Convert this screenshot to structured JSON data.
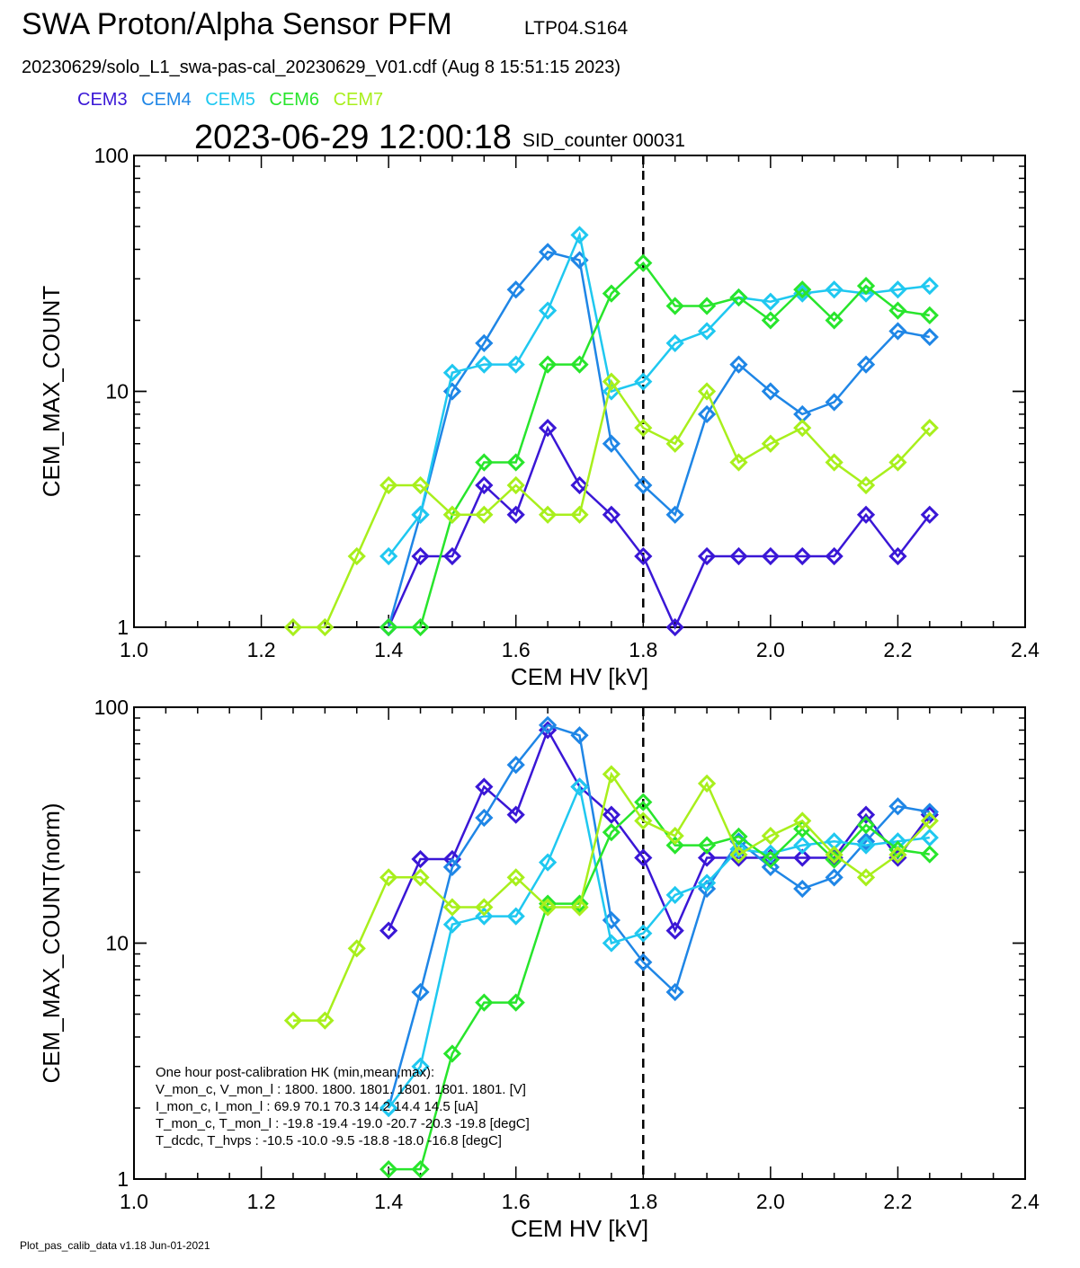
{
  "header": {
    "title": "SWA Proton/Alpha Sensor PFM",
    "subtitle": "LTP04.S164",
    "filename": "20230629/solo_L1_swa-pas-cal_20230629_V01.cdf  (Aug  8 15:51:15 2023)",
    "timestamp": "2023-06-29 12:00:18",
    "sid": "SID_counter 00031"
  },
  "legend": [
    {
      "name": "CEM3",
      "color": "#3a17d6"
    },
    {
      "name": "CEM4",
      "color": "#1f86e6"
    },
    {
      "name": "CEM5",
      "color": "#1fc8f0"
    },
    {
      "name": "CEM6",
      "color": "#28e52c"
    },
    {
      "name": "CEM7",
      "color": "#a8ef1c"
    }
  ],
  "footer": "Plot_pas_calib_data v1.18 Jun-01-2021",
  "hk_text": [
    "One hour post-calibration HK (min,mean,max):",
    "V_mon_c, V_mon_l :   1800.  1800.  1801.      1801.  1801.  1801.  [V]",
    "I_mon_c, I_mon_l :     69.9   70.1   70.3        14.2   14.4   14.5  [uA]",
    "T_mon_c, T_mon_l :   -19.8  -19.4  -19.0       -20.7  -20.3  -19.8  [degC]",
    "T_dcdc,    T_hvps :     -10.5  -10.0   -9.5       -18.8  -18.0  -16.8  [degC]"
  ],
  "chart_data": [
    {
      "type": "line",
      "xlabel": "CEM HV [kV]",
      "ylabel": "CEM_MAX_COUNT",
      "xlim": [
        1.0,
        2.4
      ],
      "ylim": [
        1,
        100
      ],
      "yscale": "log",
      "x_ticks": [
        "1.0",
        "1.2",
        "1.4",
        "1.6",
        "1.8",
        "2.0",
        "2.2",
        "2.4"
      ],
      "y_ticks": [
        "1",
        "10",
        "100"
      ],
      "vline_x": 1.8,
      "series": [
        {
          "name": "CEM3",
          "color": "#3a17d6",
          "points": [
            [
              1.4,
              1
            ],
            [
              1.45,
              2
            ],
            [
              1.5,
              2
            ],
            [
              1.55,
              4
            ],
            [
              1.6,
              3
            ],
            [
              1.65,
              7
            ],
            [
              1.7,
              4
            ],
            [
              1.75,
              3
            ],
            [
              1.8,
              2
            ],
            [
              1.85,
              1
            ],
            [
              1.9,
              2
            ],
            [
              1.95,
              2
            ],
            [
              2.0,
              2
            ],
            [
              2.05,
              2
            ],
            [
              2.1,
              2
            ],
            [
              2.15,
              3
            ],
            [
              2.2,
              2
            ],
            [
              2.25,
              3
            ]
          ]
        },
        {
          "name": "CEM4",
          "color": "#1f86e6",
          "points": [
            [
              1.4,
              1
            ],
            [
              1.45,
              3
            ],
            [
              1.5,
              10
            ],
            [
              1.55,
              16
            ],
            [
              1.6,
              27
            ],
            [
              1.65,
              39
            ],
            [
              1.7,
              36
            ],
            [
              1.75,
              6
            ],
            [
              1.8,
              4
            ],
            [
              1.85,
              3
            ],
            [
              1.9,
              8
            ],
            [
              1.95,
              13
            ],
            [
              2.0,
              10
            ],
            [
              2.05,
              8
            ],
            [
              2.1,
              9
            ],
            [
              2.15,
              13
            ],
            [
              2.2,
              18
            ],
            [
              2.25,
              17
            ]
          ]
        },
        {
          "name": "CEM5",
          "color": "#1fc8f0",
          "points": [
            [
              1.4,
              2
            ],
            [
              1.45,
              3
            ],
            [
              1.5,
              12
            ],
            [
              1.55,
              13
            ],
            [
              1.6,
              13
            ],
            [
              1.65,
              22
            ],
            [
              1.7,
              46
            ],
            [
              1.75,
              10
            ],
            [
              1.8,
              11
            ],
            [
              1.85,
              16
            ],
            [
              1.9,
              18
            ],
            [
              1.95,
              25
            ],
            [
              2.0,
              24
            ],
            [
              2.05,
              26
            ],
            [
              2.1,
              27
            ],
            [
              2.15,
              26
            ],
            [
              2.2,
              27
            ],
            [
              2.25,
              28
            ]
          ]
        },
        {
          "name": "CEM6",
          "color": "#28e52c",
          "points": [
            [
              1.4,
              1
            ],
            [
              1.45,
              1
            ],
            [
              1.5,
              3
            ],
            [
              1.55,
              5
            ],
            [
              1.6,
              5
            ],
            [
              1.65,
              13
            ],
            [
              1.7,
              13
            ],
            [
              1.75,
              26
            ],
            [
              1.8,
              35
            ],
            [
              1.85,
              23
            ],
            [
              1.9,
              23
            ],
            [
              1.95,
              25
            ],
            [
              2.0,
              20
            ],
            [
              2.05,
              27
            ],
            [
              2.1,
              20
            ],
            [
              2.15,
              28
            ],
            [
              2.2,
              22
            ],
            [
              2.25,
              21
            ]
          ]
        },
        {
          "name": "CEM7",
          "color": "#a8ef1c",
          "points": [
            [
              1.25,
              1
            ],
            [
              1.3,
              1
            ],
            [
              1.35,
              2
            ],
            [
              1.4,
              4
            ],
            [
              1.45,
              4
            ],
            [
              1.5,
              3
            ],
            [
              1.55,
              3
            ],
            [
              1.6,
              4
            ],
            [
              1.65,
              3
            ],
            [
              1.7,
              3
            ],
            [
              1.75,
              11
            ],
            [
              1.8,
              7
            ],
            [
              1.85,
              6
            ],
            [
              1.9,
              10
            ],
            [
              1.95,
              5
            ],
            [
              2.0,
              6
            ],
            [
              2.05,
              7
            ],
            [
              2.1,
              5
            ],
            [
              2.15,
              4
            ],
            [
              2.2,
              5
            ],
            [
              2.25,
              7
            ]
          ]
        }
      ]
    },
    {
      "type": "line",
      "xlabel": "CEM HV [kV]",
      "ylabel": "CEM_MAX_COUNT(norm)",
      "xlim": [
        1.0,
        2.4
      ],
      "ylim": [
        1,
        100
      ],
      "yscale": "log",
      "x_ticks": [
        "1.0",
        "1.2",
        "1.4",
        "1.6",
        "1.8",
        "2.0",
        "2.2",
        "2.4"
      ],
      "y_ticks": [
        "1",
        "10",
        "100"
      ],
      "vline_x": 1.8,
      "series": [
        {
          "name": "CEM3",
          "color": "#3a17d6",
          "points": [
            [
              1.4,
              11.3
            ],
            [
              1.45,
              22.7
            ],
            [
              1.5,
              22.7
            ],
            [
              1.55,
              46
            ],
            [
              1.6,
              35
            ],
            [
              1.65,
              80
            ],
            [
              1.7,
              46
            ],
            [
              1.75,
              35
            ],
            [
              1.8,
              23
            ],
            [
              1.85,
              11.3
            ],
            [
              1.9,
              23
            ],
            [
              1.95,
              23
            ],
            [
              2.0,
              23
            ],
            [
              2.05,
              23
            ],
            [
              2.1,
              23
            ],
            [
              2.15,
              35
            ],
            [
              2.2,
              23
            ],
            [
              2.25,
              35
            ]
          ]
        },
        {
          "name": "CEM4",
          "color": "#1f86e6",
          "points": [
            [
              1.4,
              2
            ],
            [
              1.45,
              6.2
            ],
            [
              1.5,
              21
            ],
            [
              1.55,
              34
            ],
            [
              1.6,
              57
            ],
            [
              1.65,
              84
            ],
            [
              1.7,
              76
            ],
            [
              1.75,
              12.5
            ],
            [
              1.8,
              8.3
            ],
            [
              1.85,
              6.2
            ],
            [
              1.9,
              17
            ],
            [
              1.95,
              27
            ],
            [
              2.0,
              21
            ],
            [
              2.05,
              17
            ],
            [
              2.1,
              19
            ],
            [
              2.15,
              27
            ],
            [
              2.2,
              38
            ],
            [
              2.25,
              36
            ]
          ]
        },
        {
          "name": "CEM5",
          "color": "#1fc8f0",
          "points": [
            [
              1.4,
              2
            ],
            [
              1.45,
              3
            ],
            [
              1.5,
              12
            ],
            [
              1.55,
              13
            ],
            [
              1.6,
              13
            ],
            [
              1.65,
              22
            ],
            [
              1.7,
              46
            ],
            [
              1.75,
              10
            ],
            [
              1.8,
              11
            ],
            [
              1.85,
              16
            ],
            [
              1.9,
              18
            ],
            [
              1.95,
              25
            ],
            [
              2.0,
              24
            ],
            [
              2.05,
              26
            ],
            [
              2.1,
              27
            ],
            [
              2.15,
              26
            ],
            [
              2.2,
              27
            ],
            [
              2.25,
              28
            ]
          ]
        },
        {
          "name": "CEM6",
          "color": "#28e52c",
          "points": [
            [
              1.4,
              1.1
            ],
            [
              1.45,
              1.1
            ],
            [
              1.5,
              3.4
            ],
            [
              1.55,
              5.6
            ],
            [
              1.6,
              5.6
            ],
            [
              1.65,
              14.7
            ],
            [
              1.7,
              14.7
            ],
            [
              1.75,
              29.5
            ],
            [
              1.8,
              39.6
            ],
            [
              1.85,
              26
            ],
            [
              1.9,
              26
            ],
            [
              1.95,
              28.3
            ],
            [
              2.0,
              22.6
            ],
            [
              2.05,
              30.5
            ],
            [
              2.1,
              22.6
            ],
            [
              2.15,
              31.7
            ],
            [
              2.2,
              24.9
            ],
            [
              2.25,
              23.8
            ]
          ]
        },
        {
          "name": "CEM7",
          "color": "#a8ef1c",
          "points": [
            [
              1.25,
              4.7
            ],
            [
              1.3,
              4.7
            ],
            [
              1.35,
              9.5
            ],
            [
              1.4,
              19
            ],
            [
              1.45,
              19
            ],
            [
              1.5,
              14.2
            ],
            [
              1.55,
              14.2
            ],
            [
              1.6,
              19
            ],
            [
              1.65,
              14.2
            ],
            [
              1.7,
              14.2
            ],
            [
              1.75,
              52
            ],
            [
              1.8,
              33
            ],
            [
              1.85,
              28.5
            ],
            [
              1.9,
              47.5
            ],
            [
              1.95,
              23.7
            ],
            [
              2.0,
              28.5
            ],
            [
              2.05,
              33
            ],
            [
              2.1,
              23.7
            ],
            [
              2.15,
              19
            ],
            [
              2.2,
              23.7
            ],
            [
              2.25,
              33
            ]
          ]
        }
      ]
    }
  ]
}
